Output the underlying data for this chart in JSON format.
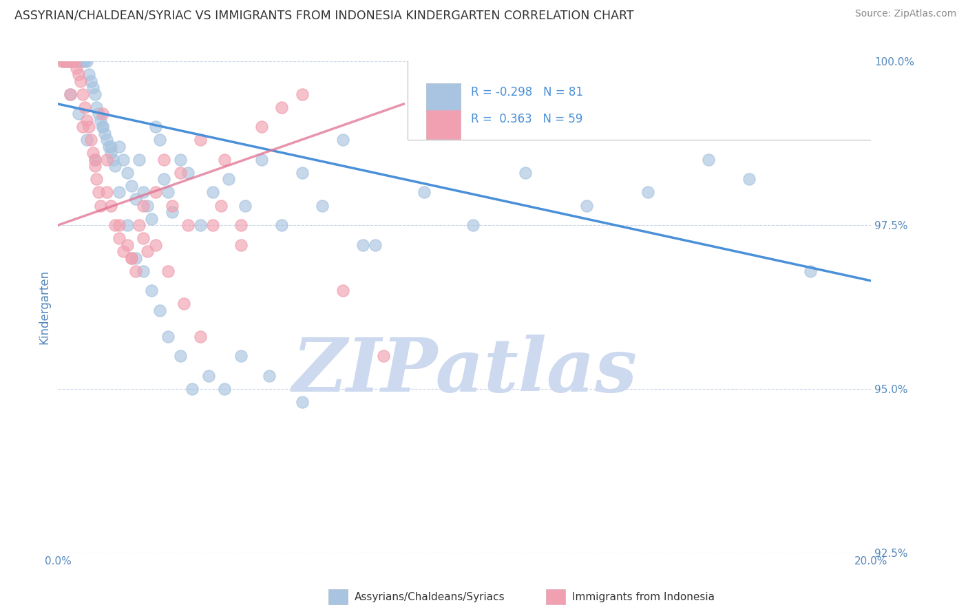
{
  "title": "ASSYRIAN/CHALDEAN/SYRIAC VS IMMIGRANTS FROM INDONESIA KINDERGARTEN CORRELATION CHART",
  "source_text": "Source: ZipAtlas.com",
  "ylabel": "Kindergarten",
  "x_min": 0.0,
  "x_max": 20.0,
  "y_min": 92.5,
  "y_max": 100.0,
  "legend_label1": "Assyrians/Chaldeans/Syriacs",
  "legend_label2": "Immigrants from Indonesia",
  "R1": -0.298,
  "N1": 81,
  "R2": 0.363,
  "N2": 59,
  "color_blue": "#a8c4e0",
  "color_pink": "#f0a0b0",
  "line_color_blue": "#4a90d9",
  "line_color_pink": "#e07090",
  "watermark_text": "ZIPatlas",
  "watermark_color": "#ccd9ee",
  "background_color": "#ffffff",
  "grid_color": "#c8d4e8",
  "title_color": "#333333",
  "source_color": "#888888",
  "tick_label_color": "#5588bb",
  "axis_label_color": "#5588bb",
  "blue_trend_x0": 0.0,
  "blue_trend_x1": 20.0,
  "blue_trend_y0": 99.35,
  "blue_trend_y1": 96.65,
  "pink_trend_x0": 0.0,
  "pink_trend_x1": 8.5,
  "pink_trend_y0": 97.5,
  "pink_trend_y1": 99.35,
  "blue_x": [
    0.15,
    0.2,
    0.25,
    0.3,
    0.35,
    0.4,
    0.45,
    0.5,
    0.55,
    0.6,
    0.65,
    0.7,
    0.75,
    0.8,
    0.85,
    0.9,
    0.95,
    1.0,
    1.05,
    1.1,
    1.15,
    1.2,
    1.25,
    1.3,
    1.35,
    1.4,
    1.5,
    1.6,
    1.7,
    1.8,
    1.9,
    2.0,
    2.1,
    2.2,
    2.3,
    2.4,
    2.5,
    2.6,
    2.7,
    2.8,
    3.0,
    3.2,
    3.5,
    3.8,
    4.2,
    4.6,
    5.0,
    5.5,
    6.0,
    6.5,
    7.0,
    7.8,
    9.0,
    10.2,
    11.5,
    13.0,
    14.5,
    16.0,
    17.0,
    18.5,
    0.3,
    0.5,
    0.7,
    0.9,
    1.1,
    1.3,
    1.5,
    1.7,
    1.9,
    2.1,
    2.3,
    2.5,
    2.7,
    3.0,
    3.3,
    3.7,
    4.1,
    4.5,
    5.2,
    6.0,
    7.5
  ],
  "blue_y": [
    100.0,
    100.0,
    100.0,
    100.0,
    100.0,
    100.0,
    100.0,
    100.0,
    100.0,
    100.0,
    100.0,
    100.0,
    99.8,
    99.7,
    99.6,
    99.5,
    99.3,
    99.2,
    99.1,
    99.0,
    98.9,
    98.8,
    98.7,
    98.6,
    98.5,
    98.4,
    98.7,
    98.5,
    98.3,
    98.1,
    97.9,
    98.5,
    98.0,
    97.8,
    97.6,
    99.0,
    98.8,
    98.2,
    98.0,
    97.7,
    98.5,
    98.3,
    97.5,
    98.0,
    98.2,
    97.8,
    98.5,
    97.5,
    98.3,
    97.8,
    98.8,
    97.2,
    98.0,
    97.5,
    98.3,
    97.8,
    98.0,
    98.5,
    98.2,
    96.8,
    99.5,
    99.2,
    98.8,
    98.5,
    99.0,
    98.7,
    98.0,
    97.5,
    97.0,
    96.8,
    96.5,
    96.2,
    95.8,
    95.5,
    95.0,
    95.2,
    95.0,
    95.5,
    95.2,
    94.8,
    97.2
  ],
  "pink_x": [
    0.1,
    0.15,
    0.2,
    0.25,
    0.3,
    0.35,
    0.4,
    0.45,
    0.5,
    0.55,
    0.6,
    0.65,
    0.7,
    0.75,
    0.8,
    0.85,
    0.9,
    0.95,
    1.0,
    1.05,
    1.1,
    1.2,
    1.3,
    1.4,
    1.5,
    1.6,
    1.7,
    1.8,
    1.9,
    2.0,
    2.1,
    2.2,
    2.4,
    2.6,
    2.8,
    3.0,
    3.2,
    3.5,
    3.8,
    4.1,
    4.5,
    5.0,
    5.5,
    6.0,
    7.0,
    8.0,
    0.3,
    0.6,
    0.9,
    1.2,
    1.5,
    1.8,
    2.1,
    2.4,
    2.7,
    3.1,
    3.5,
    4.0,
    4.5
  ],
  "pink_y": [
    100.0,
    100.0,
    100.0,
    100.0,
    100.0,
    100.0,
    100.0,
    99.9,
    99.8,
    99.7,
    99.5,
    99.3,
    99.1,
    99.0,
    98.8,
    98.6,
    98.4,
    98.2,
    98.0,
    97.8,
    99.2,
    98.5,
    97.8,
    97.5,
    97.3,
    97.1,
    97.2,
    97.0,
    96.8,
    97.5,
    97.3,
    97.1,
    98.0,
    98.5,
    97.8,
    98.3,
    97.5,
    98.8,
    97.5,
    98.5,
    97.5,
    99.0,
    99.3,
    99.5,
    96.5,
    95.5,
    99.5,
    99.0,
    98.5,
    98.0,
    97.5,
    97.0,
    97.8,
    97.2,
    96.8,
    96.3,
    95.8,
    97.8,
    97.2
  ]
}
